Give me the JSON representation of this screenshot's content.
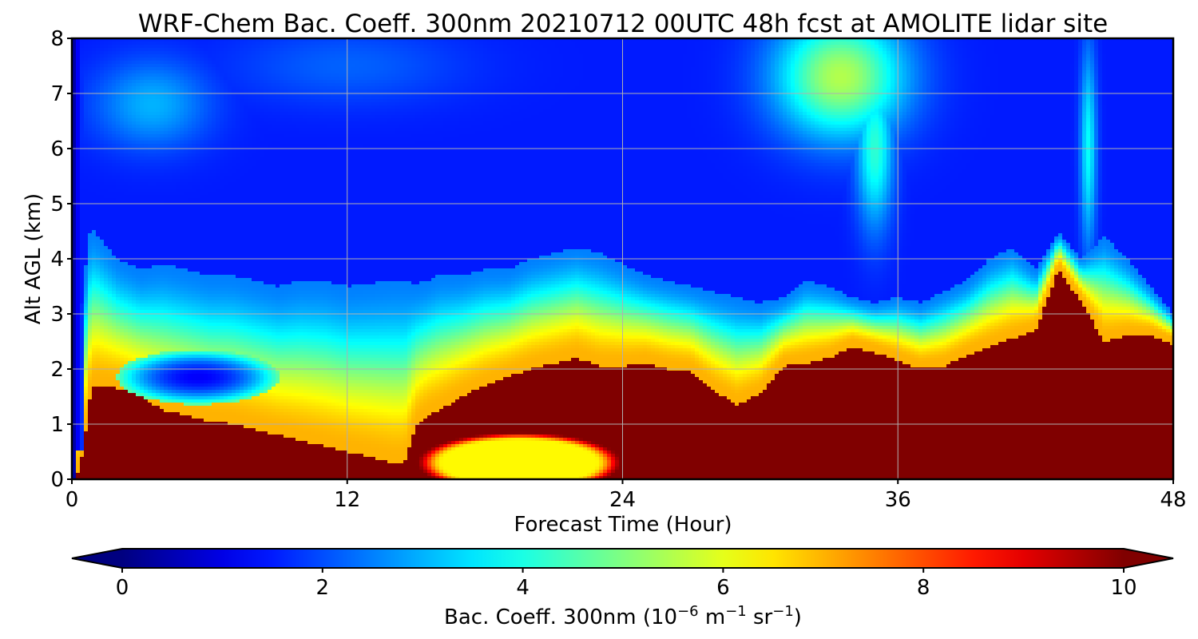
{
  "chart_data": {
    "type": "heatmap",
    "title": "WRF-Chem Bac. Coeff. 300nm  20210712 00UTC 48h fcst at AMOLITE lidar site",
    "xlabel": "Forecast Time (Hour)",
    "ylabel": "Alt AGL (km)",
    "xlim": [
      0,
      48
    ],
    "ylim": [
      0,
      8
    ],
    "xticks": [
      "0",
      "12",
      "24",
      "36",
      "48"
    ],
    "yticks": [
      "0",
      "1",
      "2",
      "3",
      "4",
      "5",
      "6",
      "7",
      "8"
    ],
    "grid": true,
    "colormap": "jet",
    "colorbar": {
      "label": "Bac. Coeff. 300nm  (10",
      "label_exp": "−6",
      "label_unit1": " m",
      "label_exp2": "−1",
      "label_unit2": " sr",
      "label_exp3": "−1",
      "label_close": ")",
      "range": [
        0,
        10
      ],
      "extend": "both",
      "ticks": [
        "0",
        "2",
        "4",
        "6",
        "8",
        "10"
      ]
    },
    "layers": {
      "background_value": 1.5,
      "aloft_blobs": [
        {
          "x": 3.5,
          "y": 6.8,
          "rx": 2.5,
          "ry": 0.8,
          "value": 3.0
        },
        {
          "x": 12,
          "y": 7.5,
          "rx": 5,
          "ry": 0.7,
          "value": 2.2
        },
        {
          "x": 33.5,
          "y": 7.3,
          "rx": 2.8,
          "ry": 1.1,
          "value": 5.5
        },
        {
          "x": 35,
          "y": 6.0,
          "rx": 0.8,
          "ry": 1.4,
          "value": 4.2
        },
        {
          "x": 44.3,
          "y": 6.0,
          "rx": 0.35,
          "ry": 1.8,
          "value": 3.8
        }
      ],
      "low_blobs": [
        {
          "x": 19.5,
          "y": 0.3,
          "rx": 4.5,
          "ry": 0.55,
          "value": 6.3
        }
      ],
      "profile_t": [
        0,
        0.2,
        0.5,
        0.8,
        1,
        2,
        3,
        4,
        5,
        6,
        7,
        8,
        9,
        10,
        11,
        12,
        13,
        14,
        14.5,
        15,
        15.5,
        16,
        17,
        18,
        19,
        20,
        21,
        22,
        23,
        24,
        25,
        26,
        27,
        28,
        29,
        30,
        31,
        32,
        33,
        34,
        35,
        36,
        37,
        38,
        39,
        40,
        41,
        42,
        43,
        44,
        45,
        46,
        47,
        48
      ],
      "red_top_km": [
        0.0,
        0.0,
        0.5,
        1.5,
        1.7,
        1.65,
        1.5,
        1.25,
        1.15,
        1.05,
        1.0,
        0.9,
        0.8,
        0.7,
        0.6,
        0.5,
        0.4,
        0.3,
        0.3,
        0.95,
        1.15,
        1.25,
        1.5,
        1.7,
        1.85,
        2.0,
        2.1,
        2.2,
        2.05,
        2.05,
        2.1,
        2.0,
        1.95,
        1.6,
        1.35,
        1.55,
        2.05,
        2.1,
        2.2,
        2.4,
        2.3,
        2.15,
        2.0,
        2.05,
        2.25,
        2.4,
        2.55,
        2.7,
        3.8,
        3.2,
        2.5,
        2.6,
        2.6,
        2.45
      ],
      "aerosol_top_km": [
        0.0,
        2.0,
        3.5,
        4.5,
        4.5,
        4.0,
        3.8,
        3.9,
        3.8,
        3.7,
        3.7,
        3.6,
        3.5,
        3.6,
        3.6,
        3.5,
        3.55,
        3.6,
        3.6,
        3.55,
        3.6,
        3.7,
        3.7,
        3.8,
        3.8,
        4.0,
        4.1,
        4.2,
        4.1,
        3.9,
        3.7,
        3.6,
        3.5,
        3.4,
        3.3,
        3.2,
        3.3,
        3.6,
        3.5,
        3.3,
        3.2,
        3.3,
        3.2,
        3.4,
        3.6,
        4.0,
        4.2,
        3.8,
        4.5,
        4.0,
        4.4,
        4.0,
        3.5,
        3.0
      ],
      "dip_2km": {
        "x": 5.5,
        "y": 1.85,
        "rx": 2.5,
        "ry": 0.35
      }
    }
  }
}
